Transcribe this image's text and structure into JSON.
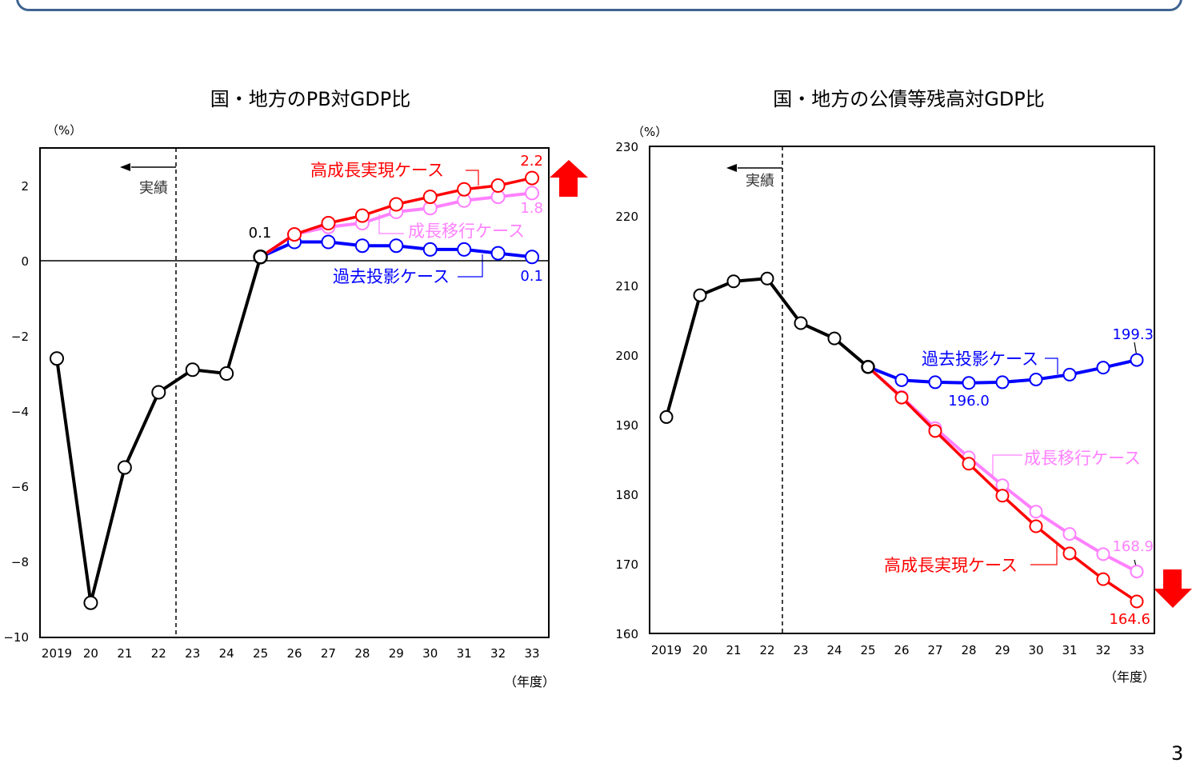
{
  "page_number": "3",
  "colors": {
    "actual": "#000000",
    "high_growth": "#ff0000",
    "transition": "#ff80ff",
    "baseline": "#0000ff",
    "arrow": "#ff0000"
  },
  "chart_data": [
    {
      "type": "line",
      "title": "国・地方のPB対GDP比",
      "ylabel": "（%）",
      "xlabel": "（年度）",
      "categories": [
        "2019",
        "20",
        "21",
        "22",
        "23",
        "24",
        "25",
        "26",
        "27",
        "28",
        "29",
        "30",
        "31",
        "32",
        "33"
      ],
      "ylim": [
        -10,
        3
      ],
      "yticks": [
        -10,
        -8,
        -6,
        -4,
        -2,
        0,
        2
      ],
      "ytick_labels": [
        "−10",
        "−8",
        "−6",
        "−4",
        "−2",
        "0",
        "2"
      ],
      "actual_marker_label": "実績",
      "series": [
        {
          "key": "actual",
          "values": [
            -2.6,
            -9.1,
            -5.5,
            -3.5,
            -2.9,
            -3.0,
            0.1,
            null,
            null,
            null,
            null,
            null,
            null,
            null,
            null
          ]
        },
        {
          "key": "baseline",
          "name": "過去投影ケース",
          "values": [
            null,
            null,
            null,
            null,
            null,
            null,
            0.1,
            0.5,
            0.5,
            0.4,
            0.4,
            0.3,
            0.3,
            0.2,
            0.1
          ]
        },
        {
          "key": "transition",
          "name": "成長移行ケース",
          "values": [
            null,
            null,
            null,
            null,
            null,
            null,
            0.1,
            0.7,
            0.9,
            1.0,
            1.3,
            1.4,
            1.6,
            1.7,
            1.8
          ]
        },
        {
          "key": "high_growth",
          "name": "高成長実現ケース",
          "values": [
            null,
            null,
            null,
            null,
            null,
            null,
            0.1,
            0.7,
            1.0,
            1.2,
            1.5,
            1.7,
            1.9,
            2.0,
            2.2
          ]
        }
      ],
      "annotations": {
        "v25": "0.1",
        "high_end": "2.2",
        "transition_end": "1.8",
        "baseline_end": "0.1"
      },
      "arrow": "up"
    },
    {
      "type": "line",
      "title": "国・地方の公債等残高対GDP比",
      "ylabel": "（%）",
      "xlabel": "（年度）",
      "categories": [
        "2019",
        "20",
        "21",
        "22",
        "23",
        "24",
        "25",
        "26",
        "27",
        "28",
        "29",
        "30",
        "31",
        "32",
        "33"
      ],
      "ylim": [
        160,
        230
      ],
      "yticks": [
        160,
        170,
        180,
        190,
        200,
        210,
        220,
        230
      ],
      "ytick_labels": [
        "160",
        "170",
        "180",
        "190",
        "200",
        "210",
        "220",
        "230"
      ],
      "actual_marker_label": "実績",
      "series": [
        {
          "key": "actual",
          "values": [
            191.1,
            208.6,
            210.6,
            211.0,
            204.6,
            202.4,
            198.3,
            null,
            null,
            null,
            null,
            null,
            null,
            null,
            null
          ]
        },
        {
          "key": "baseline",
          "name": "過去投影ケース",
          "values": [
            null,
            null,
            null,
            null,
            null,
            null,
            198.3,
            196.4,
            196.1,
            196.0,
            196.1,
            196.5,
            197.2,
            198.2,
            199.3
          ]
        },
        {
          "key": "transition",
          "name": "成長移行ケース",
          "values": [
            null,
            null,
            null,
            null,
            null,
            null,
            198.3,
            194.0,
            189.5,
            185.3,
            181.3,
            177.5,
            174.3,
            171.4,
            168.9
          ]
        },
        {
          "key": "high_growth",
          "name": "高成長実現ケース",
          "values": [
            null,
            null,
            null,
            null,
            null,
            null,
            198.3,
            193.9,
            189.1,
            184.4,
            179.8,
            175.4,
            171.5,
            167.8,
            164.6
          ]
        }
      ],
      "annotations": {
        "baseline_min": "196.0",
        "baseline_end": "199.3",
        "transition_end": "168.9",
        "high_end": "164.6"
      },
      "arrow": "down"
    }
  ]
}
